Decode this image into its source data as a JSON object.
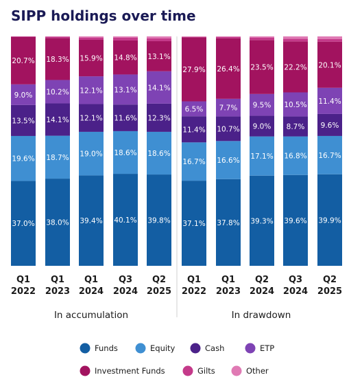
{
  "title": "SIPP holdings over time",
  "chart_data": {
    "type": "bar",
    "stacked": true,
    "ylim": [
      0,
      100
    ],
    "groups": [
      {
        "label": "In accumulation",
        "categories": [
          "Q1 2022",
          "Q1 2023",
          "Q1 2024",
          "Q3 2024",
          "Q2 2025"
        ]
      },
      {
        "label": "In drawdown",
        "categories": [
          "Q1 2022",
          "Q1 2023",
          "Q2 2024",
          "Q3 2024",
          "Q2 2025"
        ]
      }
    ],
    "category_lines": [
      [
        "Q1",
        "2022"
      ],
      [
        "Q1",
        "2023"
      ],
      [
        "Q1",
        "2024"
      ],
      [
        "Q3",
        "2024"
      ],
      [
        "Q2",
        "2025"
      ],
      [
        "Q1",
        "2022"
      ],
      [
        "Q1",
        "2023"
      ],
      [
        "Q2",
        "2024"
      ],
      [
        "Q3",
        "2024"
      ],
      [
        "Q2",
        "2025"
      ]
    ],
    "series": [
      {
        "name": "Funds",
        "color": "#135ea3",
        "values": [
          37.0,
          38.0,
          39.4,
          40.1,
          39.8,
          37.1,
          37.8,
          39.3,
          39.6,
          39.9
        ],
        "labels": [
          "37.0%",
          "38.0%",
          "39.4%",
          "40.1%",
          "39.8%",
          "37.1%",
          "37.8%",
          "39.3%",
          "39.6%",
          "39.9%"
        ]
      },
      {
        "name": "Equity",
        "color": "#3f8fd2",
        "values": [
          19.6,
          18.7,
          19.0,
          18.6,
          18.6,
          16.7,
          16.6,
          17.1,
          16.8,
          16.7
        ],
        "labels": [
          "19.6%",
          "18.7%",
          "19.0%",
          "18.6%",
          "18.6%",
          "16.7%",
          "16.6%",
          "17.1%",
          "16.8%",
          "16.7%"
        ]
      },
      {
        "name": "Cash",
        "color": "#4b2189",
        "values": [
          13.5,
          14.1,
          12.1,
          11.6,
          12.3,
          11.4,
          10.7,
          9.0,
          8.7,
          9.6
        ],
        "labels": [
          "13.5%",
          "14.1%",
          "12.1%",
          "11.6%",
          "12.3%",
          "11.4%",
          "10.7%",
          "9.0%",
          "8.7%",
          "9.6%"
        ]
      },
      {
        "name": "ETP",
        "color": "#7e43b4",
        "values": [
          9.0,
          10.2,
          12.1,
          13.1,
          14.1,
          6.5,
          7.7,
          9.5,
          10.5,
          11.4
        ],
        "labels": [
          "9.0%",
          "10.2%",
          "12.1%",
          "13.1%",
          "14.1%",
          "6.5%",
          "7.7%",
          "9.5%",
          "10.5%",
          "11.4%"
        ]
      },
      {
        "name": "Investment Funds",
        "color": "#a2135f",
        "values": [
          20.7,
          18.3,
          15.9,
          14.8,
          13.1,
          27.9,
          26.4,
          23.5,
          22.2,
          20.1
        ],
        "labels": [
          "20.7%",
          "18.3%",
          "15.9%",
          "14.8%",
          "13.1%",
          "27.9%",
          "26.4%",
          "23.5%",
          "22.2%",
          "20.1%"
        ]
      },
      {
        "name": "Gilts",
        "color": "#c43a8a",
        "values": [
          0.2,
          0.6,
          1.0,
          1.2,
          1.2,
          0.2,
          0.6,
          1.0,
          1.2,
          1.2
        ],
        "labels": []
      },
      {
        "name": "Other",
        "color": "#e07ab4",
        "values": [
          0.0,
          0.1,
          0.5,
          0.6,
          0.9,
          0.2,
          0.2,
          0.6,
          1.0,
          1.1
        ],
        "labels": []
      }
    ],
    "legend_position": "bottom",
    "grid": false
  }
}
